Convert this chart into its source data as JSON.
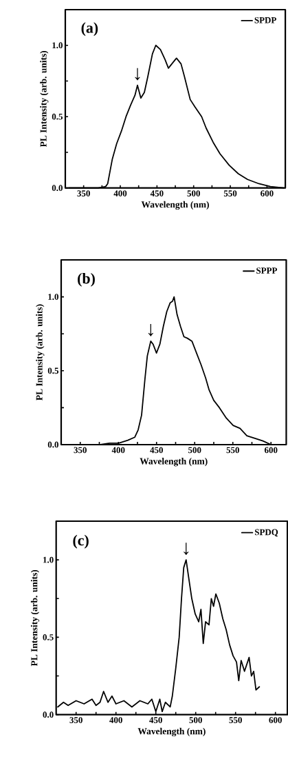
{
  "chart_data": [
    {
      "type": "line",
      "xlabel": "Wavelength (nm)",
      "ylabel": "PL Intensity (arb. units)",
      "legend": "top right",
      "xlim": [
        325,
        625
      ],
      "ylim": [
        0,
        1.25
      ],
      "xticks": [
        350,
        {
          "value": 375,
          "label": null
        },
        400,
        {
          "value": 425,
          "label": null
        },
        450,
        {
          "value": 475,
          "label": null
        },
        500,
        {
          "value": 525,
          "label": null
        },
        550,
        {
          "value": 575,
          "label": null
        },
        600
      ],
      "yticks": [
        {
          "value": 0,
          "label": "0.0"
        },
        {
          "value": 0.25,
          "label": null
        },
        {
          "value": 0.5,
          "label": "0.5"
        },
        {
          "value": 0.75,
          "label": null
        },
        {
          "value": 1.0,
          "label": "1.0"
        }
      ],
      "annotations": [
        "(a)",
        {
          "text": "↓",
          "x": 423.4,
          "y": 0.72
        }
      ],
      "series": [
        {
          "name": "SPDP",
          "color": "#000000",
          "x": [
            330,
            370,
            380,
            382.8,
            389,
            395,
            401.6,
            407.8,
            414,
            420,
            423.4,
            428,
            432.8,
            437.5,
            443.8,
            448.4,
            454.7,
            461,
            465.6,
            470.3,
            476.6,
            482.8,
            487.5,
            495.3,
            501.6,
            510.9,
            517,
            526.6,
            535.9,
            548.4,
            560.9,
            573.4,
            589,
            604.7,
            623
          ],
          "values": [
            0.0,
            0.0,
            0.01,
            0.03,
            0.2,
            0.31,
            0.4,
            0.5,
            0.58,
            0.65,
            0.72,
            0.63,
            0.67,
            0.78,
            0.94,
            1.0,
            0.97,
            0.9,
            0.84,
            0.87,
            0.91,
            0.87,
            0.78,
            0.62,
            0.57,
            0.5,
            0.42,
            0.32,
            0.24,
            0.16,
            0.1,
            0.06,
            0.03,
            0.01,
            0.0
          ]
        }
      ]
    },
    {
      "type": "line",
      "xlabel": "Wavelength (nm)",
      "ylabel": "PL Intensity (arb. units)",
      "legend": "top right",
      "xlim": [
        325,
        620
      ],
      "ylim": [
        0,
        1.25
      ],
      "xticks": [
        350,
        {
          "value": 375,
          "label": null
        },
        400,
        {
          "value": 425,
          "label": null
        },
        450,
        {
          "value": 475,
          "label": null
        },
        500,
        {
          "value": 525,
          "label": null
        },
        550,
        {
          "value": 575,
          "label": null
        },
        600
      ],
      "yticks": [
        {
          "value": 0,
          "label": "0.0"
        },
        {
          "value": 0.25,
          "label": null
        },
        {
          "value": 0.5,
          "label": "0.5"
        },
        {
          "value": 0.75,
          "label": null
        },
        {
          "value": 1.0,
          "label": "1.0"
        }
      ],
      "annotations": [
        "(b)",
        {
          "text": "↓",
          "x": 442.4,
          "y": 0.7
        }
      ],
      "series": [
        {
          "name": "SPPP",
          "color": "#000000",
          "x": [
            376.4,
            388.4,
            400.4,
            412.4,
            421.4,
            425.9,
            430.4,
            434.9,
            437.9,
            442.4,
            445.4,
            449.9,
            454.4,
            458.9,
            463.4,
            467.9,
            470.9,
            473,
            476.9,
            481.4,
            485.9,
            490.4,
            496.4,
            502.4,
            508.4,
            514.4,
            518.9,
            524.9,
            532.4,
            541.4,
            550.4,
            559.4,
            568.4,
            580.4,
            589.4,
            600
          ],
          "values": [
            0.0,
            0.01,
            0.01,
            0.03,
            0.05,
            0.1,
            0.2,
            0.45,
            0.6,
            0.7,
            0.68,
            0.62,
            0.68,
            0.8,
            0.9,
            0.96,
            0.97,
            1.0,
            0.88,
            0.8,
            0.73,
            0.72,
            0.7,
            0.62,
            0.54,
            0.45,
            0.37,
            0.3,
            0.25,
            0.18,
            0.13,
            0.11,
            0.06,
            0.04,
            0.025,
            0.0
          ]
        }
      ]
    },
    {
      "type": "line",
      "xlabel": "Wavelength (nm)",
      "ylabel": "PL Intensity (arb. units)",
      "legend": "top right",
      "xlim": [
        325,
        615
      ],
      "ylim": [
        0,
        1.25
      ],
      "xticks": [
        350,
        {
          "value": 375,
          "label": null
        },
        400,
        {
          "value": 425,
          "label": null
        },
        450,
        {
          "value": 475,
          "label": null
        },
        500,
        {
          "value": 525,
          "label": null
        },
        550,
        {
          "value": 575,
          "label": null
        },
        600
      ],
      "yticks": [
        {
          "value": 0,
          "label": "0.0"
        },
        {
          "value": 0.25,
          "label": null
        },
        {
          "value": 0.5,
          "label": "0.5"
        },
        {
          "value": 0.75,
          "label": null
        },
        {
          "value": 1.0,
          "label": "1.0"
        }
      ],
      "annotations": [
        "(c)",
        {
          "text": "↓",
          "x": 488,
          "y": 1.0
        }
      ],
      "series": [
        {
          "name": "SPDQ",
          "color": "#000000",
          "x": [
            327,
            334.2,
            340,
            350,
            360,
            370,
            375,
            380,
            384.5,
            390,
            395,
            400,
            410,
            420,
            430,
            440,
            445,
            450,
            455,
            458,
            462,
            468,
            470.7,
            475,
            479.3,
            482.2,
            485,
            488,
            490.8,
            495.1,
            499.4,
            503.8,
            506.6,
            509.5,
            512.4,
            516.7,
            519.6,
            522.4,
            525.3,
            529.6,
            534,
            538.2,
            542.6,
            546.9,
            551.2,
            554,
            557,
            561.2,
            567,
            569.9,
            572.7,
            575.6,
            579.9
          ],
          "values": [
            0.05,
            0.08,
            0.06,
            0.09,
            0.07,
            0.1,
            0.06,
            0.08,
            0.15,
            0.08,
            0.12,
            0.07,
            0.09,
            0.05,
            0.09,
            0.07,
            0.1,
            0.02,
            0.1,
            0.02,
            0.08,
            0.05,
            0.12,
            0.3,
            0.5,
            0.75,
            0.95,
            1.0,
            0.9,
            0.75,
            0.65,
            0.6,
            0.68,
            0.46,
            0.6,
            0.58,
            0.75,
            0.7,
            0.78,
            0.72,
            0.62,
            0.55,
            0.45,
            0.38,
            0.34,
            0.22,
            0.35,
            0.28,
            0.37,
            0.25,
            0.28,
            0.16,
            0.18
          ]
        }
      ]
    }
  ]
}
